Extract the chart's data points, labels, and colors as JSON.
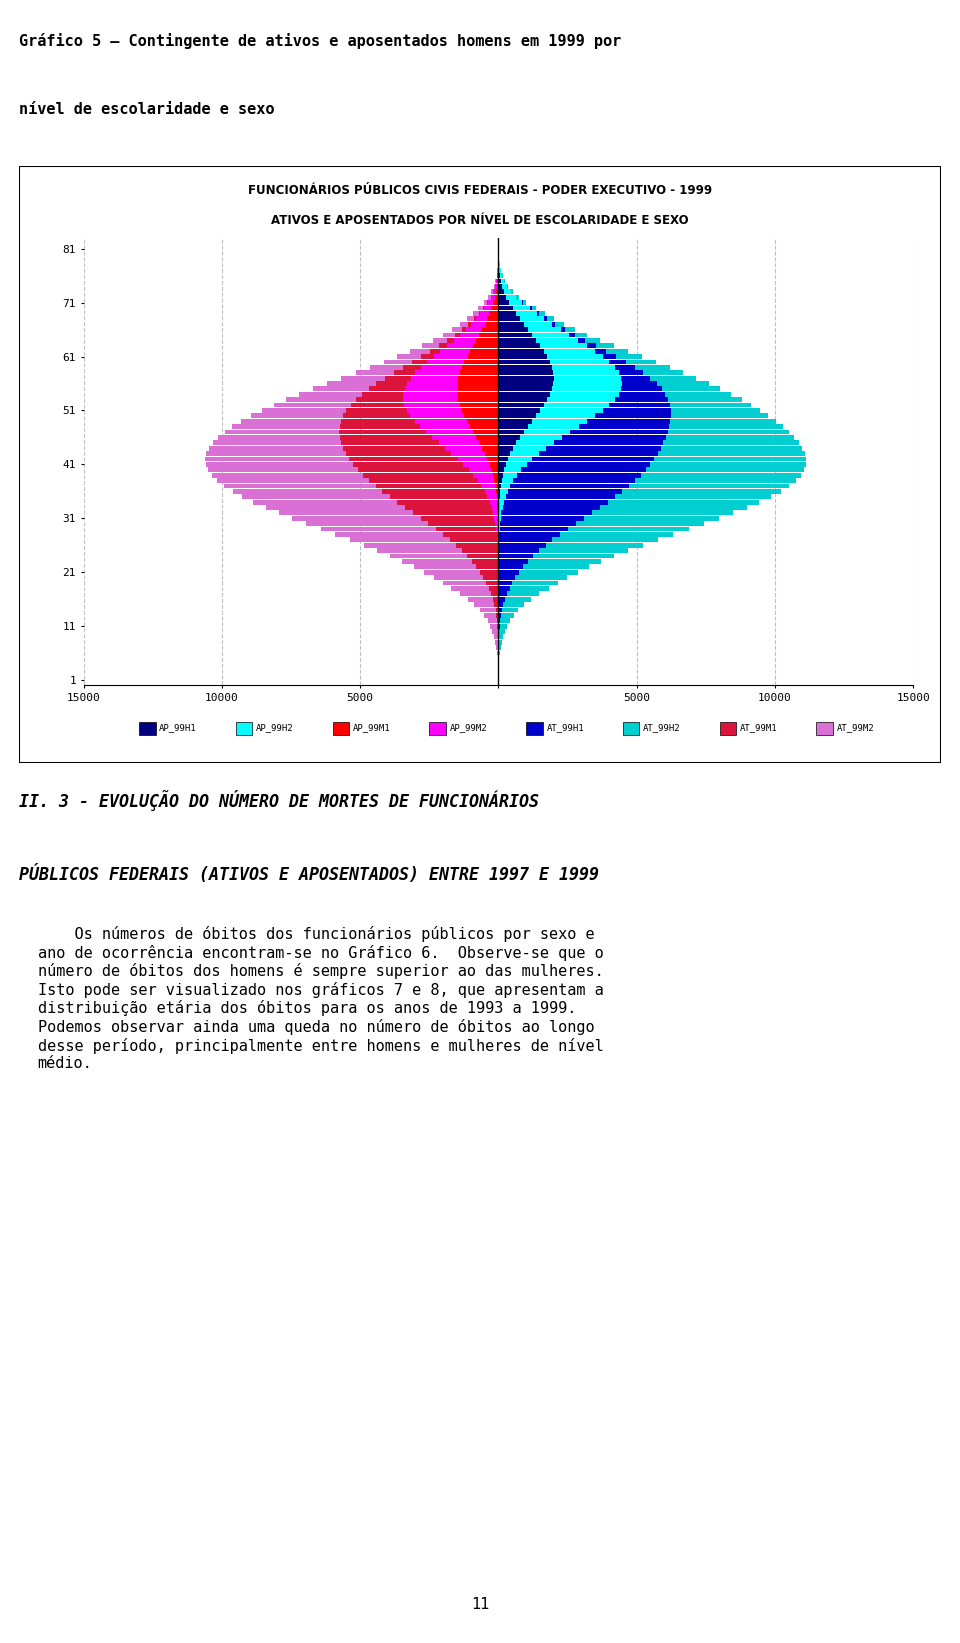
{
  "title_line1": "FUNCIONÁRIOS PÚBLICOS CIVIS FEDERAIS - PODER EXECUTIVO - 1999",
  "title_line2": "ATIVOS E APOSENTADOS POR NÍVEL DE ESCOLARIDADE E SEXO",
  "page_title_line1": "Gráfico 5 – Contingente de ativos e aposentados homens em 1999 por",
  "page_title_line2": "nível de escolaridade e sexo",
  "section_title": "II. 3 - EVOLUÇÃO DO NÚMERO DE MORTES DE FUNCIONÁRIOS PÚBLICOS FEDERAIS (ATIVOS E APOSENTADOS) ENTRE 1997 E 1999",
  "body_text": "    Os números de óbitos dos funcionários públicos por sexo e\nano de ocorrência encontram-se no Gráfico 6.  Observe-se que o\nnúmero de óbitos dos homens é sempre superior ao das mulheres.\nIsto pode ser visualizado nos gráficos 7 e 8, que apresentam a\ndistribuição etária dos óbitos para os anos de 1993 a 1999.\nPodemos observar ainda uma queda no número de óbitos ao longo\ndesse período, principalmente entre homens e mulheres de nível\nmédio.",
  "page_number": "11",
  "ylim": [
    0,
    82
  ],
  "xlim": [
    -15000,
    15000
  ],
  "yticks": [
    1,
    11,
    21,
    31,
    41,
    51,
    61,
    71,
    81
  ],
  "xticks": [
    -15000,
    -10000,
    -5000,
    0,
    5000,
    10000,
    15000
  ],
  "xtick_labels": [
    "15000",
    "10000",
    "5000",
    "",
    "5000",
    "10000",
    "15000"
  ],
  "colors": {
    "AP_99H1": "#000080",
    "AP_99H2": "#00FFFF",
    "AP_99M1": "#FF0000",
    "AP_99M2": "#FF00FF",
    "AT_99H1": "#0000CD",
    "AT_99H2": "#00CED1",
    "AT_99M1": "#DC143C",
    "AT_99M2": "#DA70D6"
  },
  "legend_labels": [
    "AP_99H1",
    "AP_99H2",
    "AP_99M1",
    "AP_99M2",
    "AT_99H1",
    "AT_99H2",
    "AT_99M1",
    "AT_99M2"
  ],
  "background_color": "#FFFFFF",
  "chart_bg": "#FFFFFF",
  "grid_color": "#C0C0C0"
}
